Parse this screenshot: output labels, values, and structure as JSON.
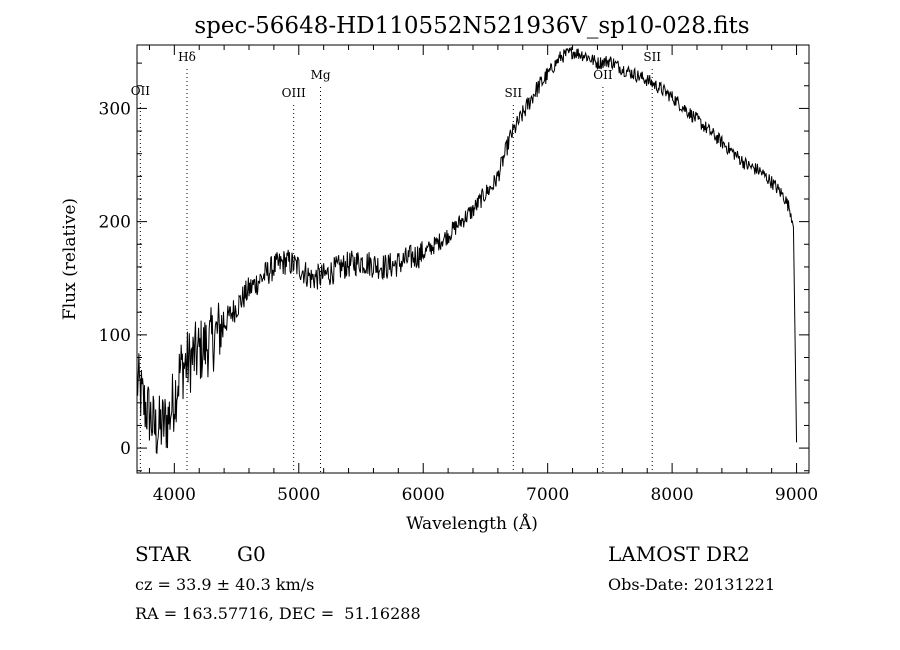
{
  "chart_data": {
    "type": "line",
    "title": "spec-56648-HD110552N521936V_sp10-028.fits",
    "xlabel": "Wavelength (Å)",
    "ylabel": "Flux (relative)",
    "xlim": [
      3700,
      9100
    ],
    "ylim": [
      -22,
      356
    ],
    "x_ticks": [
      4000,
      5000,
      6000,
      7000,
      8000,
      9000
    ],
    "y_ticks": [
      0,
      100,
      200,
      300
    ],
    "grid": false,
    "series": [
      {
        "x": [
          3700,
          3750,
          3800,
          3850,
          3900,
          3950,
          4000,
          4050,
          4100,
          4150,
          4200,
          4300,
          4400,
          4500,
          4600,
          4700,
          4800,
          4900,
          5000,
          5100,
          5200,
          5300,
          5400,
          5500,
          5600,
          5700,
          5800,
          5900,
          6000,
          6100,
          6200,
          6300,
          6400,
          6500,
          6560,
          6600,
          6700,
          6800,
          6900,
          7000,
          7100,
          7200,
          7300,
          7400,
          7500,
          7600,
          7700,
          7800,
          7900,
          8000,
          8100,
          8200,
          8300,
          8400,
          8500,
          8600,
          8700,
          8800,
          8900,
          8950,
          8975,
          9000
        ],
        "y": [
          60,
          40,
          30,
          15,
          20,
          25,
          45,
          70,
          75,
          80,
          85,
          95,
          110,
          125,
          140,
          150,
          160,
          165,
          160,
          150,
          152,
          158,
          162,
          165,
          162,
          160,
          163,
          168,
          172,
          180,
          188,
          200,
          210,
          225,
          232,
          240,
          275,
          295,
          315,
          330,
          345,
          350,
          347,
          340,
          342,
          335,
          330,
          325,
          318,
          310,
          300,
          290,
          280,
          270,
          260,
          250,
          245,
          235,
          222,
          210,
          195,
          5
        ]
      }
    ],
    "annotations": [
      {
        "label": "OII",
        "x": 3727
      },
      {
        "label": "Hδ",
        "x": 4102
      },
      {
        "label": "OIII",
        "x": 4959
      },
      {
        "label": "Mg",
        "x": 5175
      },
      {
        "label": "SII",
        "x": 6724
      },
      {
        "label": "OII",
        "x": 7444
      },
      {
        "label": "SII",
        "x": 7840
      }
    ]
  },
  "info": {
    "object_class": "STAR",
    "subclass": "G0",
    "survey": "LAMOST DR2",
    "redshift_line": "cz = 33.9 ± 40.3 km/s",
    "obs_date": "Obs-Date: 20131221",
    "coords": "RA = 163.57716, DEC =  51.16288"
  }
}
